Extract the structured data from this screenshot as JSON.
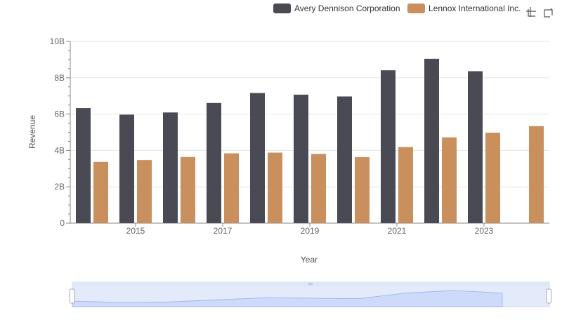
{
  "chart_data": {
    "type": "bar",
    "x": [
      2014,
      2015,
      2016,
      2017,
      2018,
      2019,
      2020,
      2021,
      2022,
      2023,
      2024
    ],
    "series": [
      {
        "name": "Avery Dennison Corporation",
        "color": "#4a4a55",
        "values": [
          6.33,
          5.97,
          6.09,
          6.61,
          7.16,
          7.07,
          6.97,
          8.41,
          9.04,
          8.36,
          null
        ]
      },
      {
        "name": "Lennox International Inc.",
        "color": "#c9905e",
        "values": [
          3.37,
          3.47,
          3.64,
          3.84,
          3.88,
          3.81,
          3.63,
          4.19,
          4.72,
          4.98,
          5.34
        ]
      }
    ],
    "ylabel": "Revenue",
    "xlabel": "Year",
    "ylim": [
      0,
      10
    ],
    "y_ticks": [
      "0",
      "2B",
      "4B",
      "6B",
      "8B",
      "10B"
    ],
    "x_ticks": [
      "2015",
      "2017",
      "2019",
      "2021",
      "2023"
    ],
    "legend_position": "top-right",
    "grid": true
  },
  "toolbox": {
    "zoom_icon": "zoom-icon",
    "restore_icon": "restore-icon"
  },
  "datazoom": {
    "handle": "grip-lines",
    "range": [
      0,
      100
    ]
  }
}
